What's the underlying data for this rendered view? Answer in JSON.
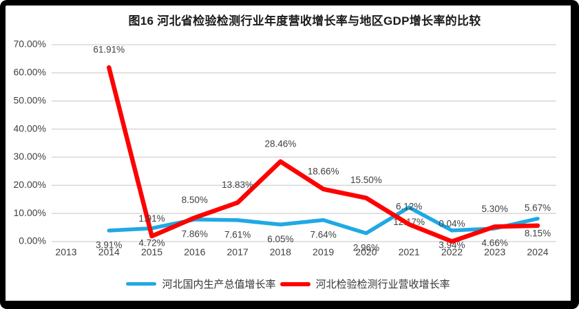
{
  "frame": {
    "background": "#ffffff",
    "border_color": "#000000"
  },
  "chart_data": {
    "type": "line",
    "title": "图16 河北省检验检测行业年度营收增长率与地区GDP增长率的比较",
    "categories": [
      "2013",
      "2014",
      "2015",
      "2016",
      "2017",
      "2018",
      "2019",
      "2020",
      "2021",
      "2022",
      "2023",
      "2024"
    ],
    "series": [
      {
        "name": "河北国内生产总值增长率",
        "color": "#1FA9E4",
        "stroke_width": 5.5,
        "label_position": "below",
        "values": [
          null,
          3.91,
          4.72,
          7.86,
          7.61,
          6.05,
          7.64,
          2.96,
          12.17,
          3.94,
          4.66,
          8.15
        ]
      },
      {
        "name": "河北检验检测行业营收增长率",
        "color": "#FF0000",
        "stroke_width": 6.5,
        "label_position": "above",
        "values": [
          null,
          61.91,
          1.91,
          8.5,
          13.83,
          28.46,
          18.66,
          15.5,
          6.12,
          0.04,
          5.3,
          5.67
        ]
      }
    ],
    "xlabel": "",
    "ylabel": "",
    "ylim": [
      0,
      70
    ],
    "yticks": [
      0,
      10,
      20,
      30,
      40,
      50,
      60,
      70
    ],
    "ytick_labels": [
      "0.00%",
      "10.00%",
      "20.00%",
      "30.00%",
      "40.00%",
      "50.00%",
      "60.00%",
      "70.00%"
    ],
    "value_label_format": "two-decimal-percent",
    "grid": true,
    "gridline_color": "#D9D9D9",
    "axis_text_color": "#404040",
    "legend_position": "bottom"
  }
}
